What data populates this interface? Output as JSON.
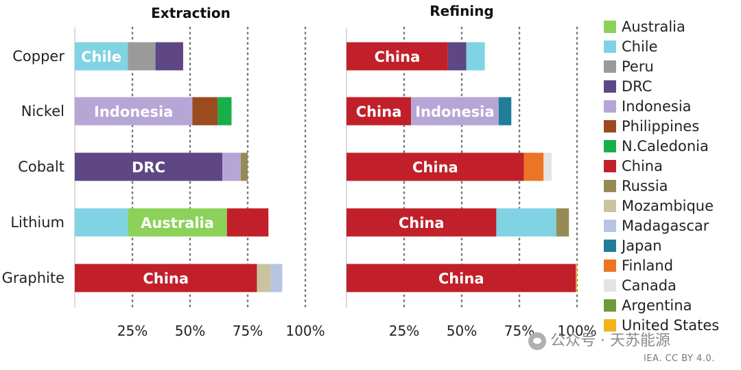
{
  "chart_data": [
    {
      "type": "bar",
      "orientation": "horizontal",
      "stacked": true,
      "title": "Extraction",
      "categories": [
        "Copper",
        "Nickel",
        "Cobalt",
        "Lithium",
        "Graphite"
      ],
      "x_tick_labels": [
        "25%",
        "50%",
        "75%",
        "100%"
      ],
      "xlim": [
        0,
        100
      ],
      "grid": "vertical dotted at 25, 50, 75, 100",
      "series": [
        {
          "name": "Chile",
          "values": [
            23,
            0,
            0,
            23,
            0
          ],
          "bar_labels": [
            "Chile",
            "",
            "",
            "",
            ""
          ]
        },
        {
          "name": "Peru",
          "values": [
            12,
            0,
            0,
            0,
            0
          ]
        },
        {
          "name": "DRC",
          "values": [
            12,
            0,
            64,
            0,
            0
          ],
          "bar_labels": [
            "",
            "",
            "DRC",
            "",
            ""
          ]
        },
        {
          "name": "Indonesia",
          "values": [
            0,
            51,
            8,
            0,
            0
          ],
          "bar_labels": [
            "",
            "Indonesia",
            "",
            "",
            ""
          ]
        },
        {
          "name": "Philippines",
          "values": [
            0,
            11,
            0,
            0,
            0
          ]
        },
        {
          "name": "N.Caledonia",
          "values": [
            0,
            6,
            0,
            0,
            0
          ]
        },
        {
          "name": "Russia",
          "values": [
            0,
            0,
            3,
            0,
            0
          ]
        },
        {
          "name": "Australia",
          "values": [
            0,
            0,
            0,
            43,
            0
          ],
          "bar_labels": [
            "",
            "",
            "",
            "Australia",
            ""
          ]
        },
        {
          "name": "China",
          "values": [
            0,
            0,
            0,
            18,
            79
          ],
          "bar_labels": [
            "",
            "",
            "",
            "",
            "China"
          ]
        },
        {
          "name": "Mozambique",
          "values": [
            0,
            0,
            0,
            0,
            6
          ]
        },
        {
          "name": "Madagascar",
          "values": [
            0,
            0,
            0,
            0,
            5
          ]
        }
      ]
    },
    {
      "type": "bar",
      "orientation": "horizontal",
      "stacked": true,
      "title": "Refining",
      "categories": [
        "Copper",
        "Nickel",
        "Cobalt",
        "Lithium",
        "Graphite"
      ],
      "x_tick_labels": [
        "25%",
        "50%",
        "75%",
        "100%"
      ],
      "xlim": [
        0,
        100
      ],
      "grid": "vertical dotted at 25, 50, 75, 100",
      "series": [
        {
          "name": "China",
          "values": [
            44,
            28,
            77,
            65,
            99.5
          ],
          "bar_labels": [
            "China",
            "China",
            "China",
            "China",
            "China"
          ]
        },
        {
          "name": "DRC",
          "values": [
            8,
            0,
            0,
            0,
            0
          ]
        },
        {
          "name": "Chile",
          "values": [
            8,
            0,
            0,
            26,
            0
          ]
        },
        {
          "name": "Indonesia",
          "values": [
            0,
            38,
            0,
            0,
            0
          ],
          "bar_labels": [
            "",
            "Indonesia",
            "",
            "",
            ""
          ]
        },
        {
          "name": "Japan",
          "values": [
            0,
            5.5,
            0,
            0,
            0
          ]
        },
        {
          "name": "Finland",
          "values": [
            0,
            0,
            8.5,
            0,
            0
          ]
        },
        {
          "name": "Canada",
          "values": [
            0,
            0,
            3.5,
            0,
            0
          ]
        },
        {
          "name": "Russia",
          "values": [
            0,
            0,
            0,
            5.5,
            0
          ]
        },
        {
          "name": "United States",
          "values": [
            0,
            0,
            0,
            0,
            0.5
          ]
        }
      ]
    }
  ],
  "colors": {
    "Australia": "#8cd15a",
    "Chile": "#7fd3e3",
    "Peru": "#9a9a9a",
    "DRC": "#5e4784",
    "Indonesia": "#b6a6d6",
    "Philippines": "#9c4b1f",
    "N.Caledonia": "#1aae4a",
    "China": "#c1202a",
    "Russia": "#978b55",
    "Mozambique": "#c9c3a0",
    "Madagascar": "#b7c4e2",
    "Japan": "#1f7f98",
    "Finland": "#ec7425",
    "Canada": "#e4e4e4",
    "Argentina": "#6e9a3a",
    "United States": "#f1b41b"
  },
  "legend": [
    "Australia",
    "Chile",
    "Peru",
    "DRC",
    "Indonesia",
    "Philippines",
    "N.Caledonia",
    "China",
    "Russia",
    "Mozambique",
    "Madagascar",
    "Japan",
    "Finland",
    "Canada",
    "Argentina",
    "United States"
  ],
  "watermark": "公众号 · 天苏能源",
  "credit": "IEA. CC BY 4.0."
}
